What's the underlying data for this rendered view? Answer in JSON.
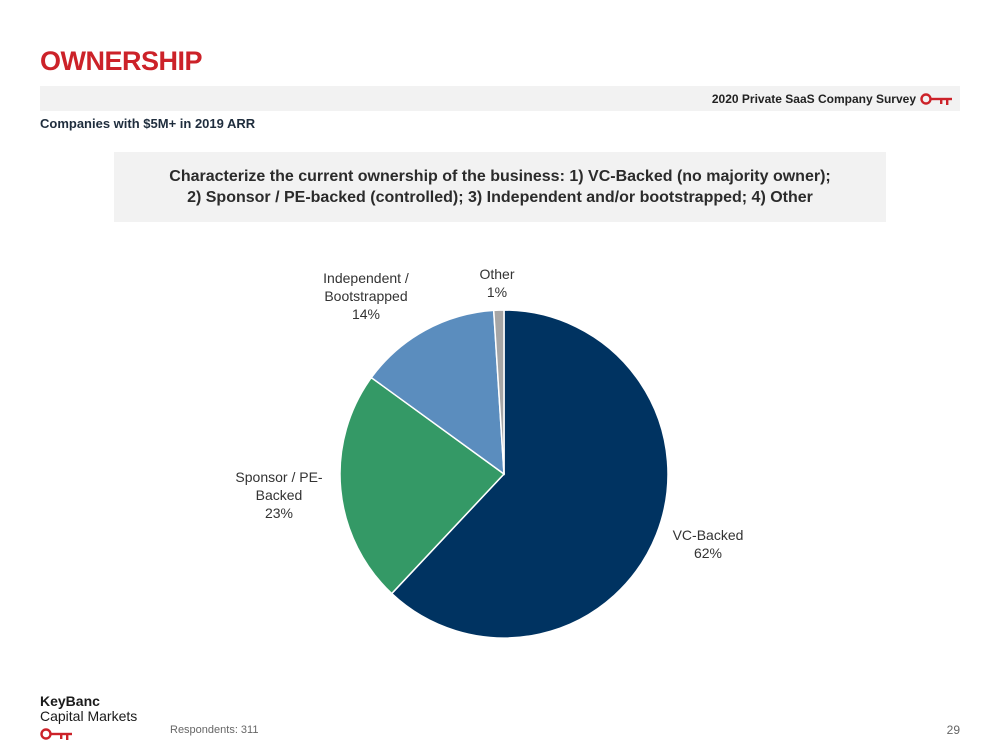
{
  "header": {
    "title": "OWNERSHIP",
    "survey_label": "2020 Private SaaS Company Survey",
    "subtitle": "Companies with $5M+ in 2019 ARR"
  },
  "question": {
    "line1": "Characterize the current ownership of the business: 1) VC-Backed (no majority owner);",
    "line2": "2) Sponsor / PE-backed (controlled); 3) Independent and/or bootstrapped; 4) Other"
  },
  "chart_data": {
    "type": "pie",
    "start": "12 o'clock",
    "direction": "clockwise",
    "slices": [
      {
        "label_lines": [
          "VC-Backed"
        ],
        "value": 62,
        "value_label": "62%",
        "color": "#003361"
      },
      {
        "label_lines": [
          "Sponsor / PE-",
          "Backed"
        ],
        "value": 23,
        "value_label": "23%",
        "color": "#349966"
      },
      {
        "label_lines": [
          "Independent /",
          "Bootstrapped"
        ],
        "value": 14,
        "value_label": "14%",
        "color": "#5b8dbe"
      },
      {
        "label_lines": [
          "Other"
        ],
        "value": 1,
        "value_label": "1%",
        "color": "#a6a6a6"
      }
    ]
  },
  "footer": {
    "logo_line1": "KeyBanc",
    "logo_line2": "Capital Markets",
    "respondents": "Respondents: 311",
    "page_number": "29"
  },
  "colors": {
    "brand_red": "#cc2229"
  },
  "icons": {
    "survey_key": "key-icon",
    "logo_key": "key-icon"
  }
}
